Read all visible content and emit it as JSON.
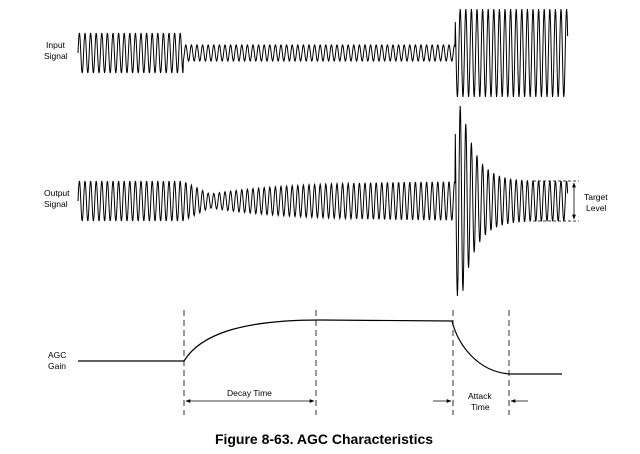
{
  "figure": {
    "caption": "Figure 8-63. AGC Characteristics",
    "input_label": [
      "Input",
      "Signal"
    ],
    "output_label": [
      "Output",
      "Signal"
    ],
    "gain_label": [
      "AGC",
      "Gain"
    ],
    "target_label": [
      "Target",
      "Level"
    ],
    "decay_label": "Decay Time",
    "attack_label": [
      "Attack",
      "Time"
    ]
  }
}
